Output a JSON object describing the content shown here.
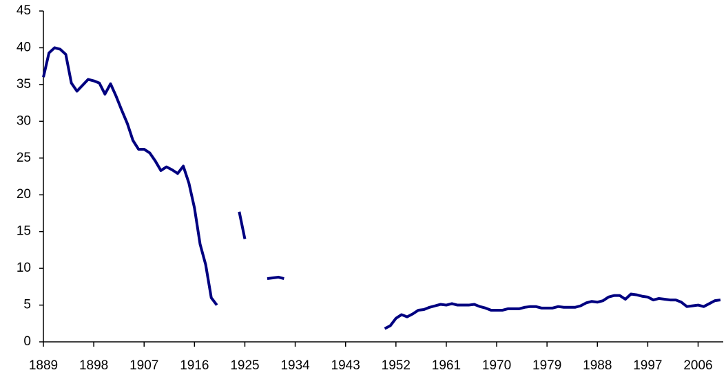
{
  "chart_data": {
    "type": "line",
    "x": [
      1889,
      1890,
      1891,
      1892,
      1893,
      1894,
      1895,
      1896,
      1897,
      1898,
      1899,
      1900,
      1901,
      1902,
      1903,
      1904,
      1905,
      1906,
      1907,
      1908,
      1909,
      1910,
      1911,
      1912,
      1913,
      1914,
      1915,
      1916,
      1917,
      1918,
      1919,
      1920,
      1921,
      1922,
      1923,
      1924,
      1925,
      1926,
      1927,
      1928,
      1929,
      1930,
      1931,
      1932,
      1933,
      1934,
      1935,
      1936,
      1937,
      1938,
      1939,
      1940,
      1941,
      1942,
      1943,
      1944,
      1945,
      1946,
      1947,
      1948,
      1949,
      1950,
      1951,
      1952,
      1953,
      1954,
      1955,
      1956,
      1957,
      1958,
      1959,
      1960,
      1961,
      1962,
      1963,
      1964,
      1965,
      1966,
      1967,
      1968,
      1969,
      1970,
      1971,
      1972,
      1973,
      1974,
      1975,
      1976,
      1977,
      1978,
      1979,
      1980,
      1981,
      1982,
      1983,
      1984,
      1985,
      1986,
      1987,
      1988,
      1989,
      1990,
      1991,
      1992,
      1993,
      1994,
      1995,
      1996,
      1997,
      1998,
      1999,
      2000,
      2001,
      2002,
      2003,
      2004,
      2005,
      2006,
      2007,
      2008,
      2009,
      2010
    ],
    "series": [
      {
        "color": "#000080",
        "values": [
          36,
          39.3,
          40,
          39.8,
          39.1,
          35.2,
          34.1,
          34.9,
          35.7,
          35.5,
          35.2,
          33.7,
          35.1,
          33.4,
          31.5,
          29.7,
          27.4,
          26.2,
          26.2,
          25.7,
          24.6,
          23.3,
          23.8,
          23.4,
          22.9,
          23.9,
          21.6,
          18.2,
          13.3,
          10.5,
          6,
          5,
          null,
          null,
          null,
          17.7,
          14,
          null,
          null,
          null,
          8.6,
          8.7,
          8.8,
          8.6,
          null,
          null,
          null,
          null,
          null,
          null,
          null,
          null,
          null,
          null,
          null,
          null,
          null,
          null,
          null,
          null,
          null,
          1.8,
          2.2,
          3.2,
          3.7,
          3.4,
          3.8,
          4.3,
          4.4,
          4.7,
          4.9,
          5.1,
          5.0,
          5.2,
          5.0,
          5.0,
          5.0,
          5.1,
          4.8,
          4.6,
          4.3,
          4.3,
          4.3,
          4.5,
          4.5,
          4.5,
          4.7,
          4.8,
          4.8,
          4.6,
          4.6,
          4.6,
          4.8,
          4.7,
          4.7,
          4.7,
          4.9,
          5.3,
          5.5,
          5.4,
          5.6,
          6.1,
          6.3,
          6.3,
          5.8,
          6.5,
          6.4,
          6.2,
          6.1,
          5.7,
          5.9,
          5.8,
          5.7,
          5.7,
          5.4,
          4.8,
          4.9,
          5.0,
          4.8,
          5.2,
          5.6,
          5.7
        ]
      }
    ],
    "xlim": [
      1889,
      2010
    ],
    "xticks": [
      1889,
      1898,
      1907,
      1916,
      1925,
      1934,
      1943,
      1952,
      1961,
      1970,
      1979,
      1988,
      1997,
      2006
    ],
    "ylim": [
      0,
      45
    ],
    "yticks": [
      0,
      5,
      10,
      15,
      20,
      25,
      30,
      35,
      40,
      45
    ],
    "grid": false
  }
}
